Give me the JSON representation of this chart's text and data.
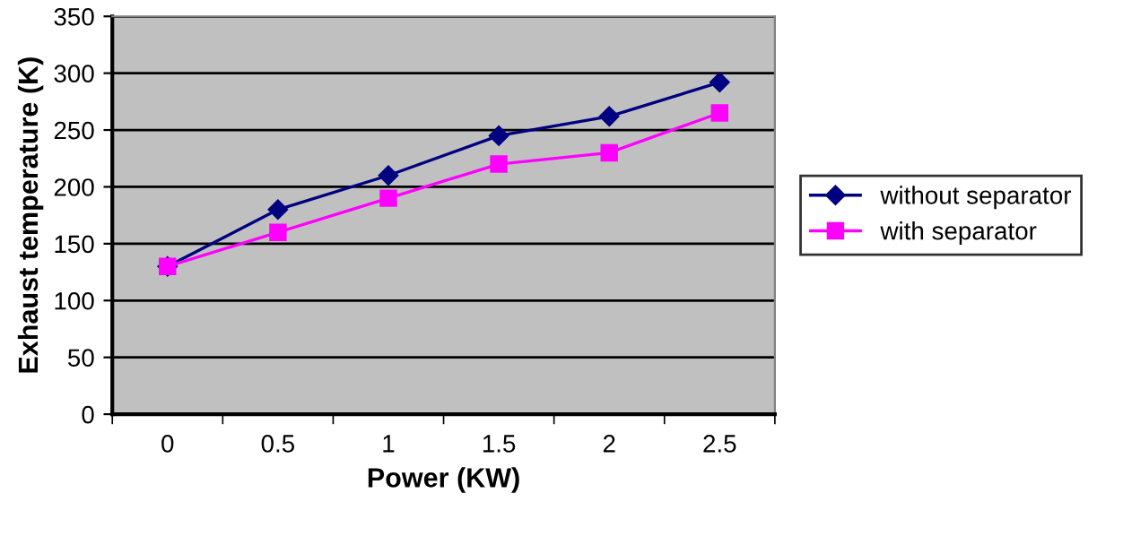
{
  "chart_data": {
    "type": "line",
    "xlabel": "Power (KW)",
    "ylabel": "Exhaust temperature (K)",
    "categories": [
      "0",
      "0.5",
      "1",
      "1.5",
      "2",
      "2.5"
    ],
    "series": [
      {
        "name": "without separator",
        "color": "#000080",
        "marker": "diamond",
        "values": [
          130,
          180,
          210,
          245,
          262,
          292
        ]
      },
      {
        "name": "with separator",
        "color": "#ff00ff",
        "marker": "square",
        "values": [
          130,
          160,
          190,
          220,
          230,
          265
        ]
      }
    ],
    "ylim": [
      0,
      350
    ],
    "yticks": [
      0,
      50,
      100,
      150,
      200,
      250,
      300,
      350
    ],
    "grid": "y",
    "legend": "right"
  }
}
